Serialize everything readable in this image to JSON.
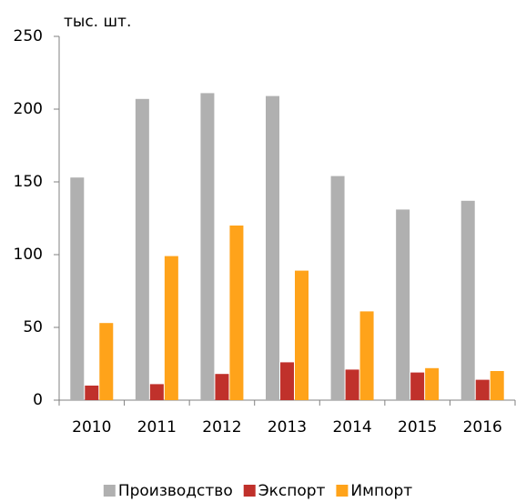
{
  "chart_data": {
    "type": "bar",
    "y_label": "тыс. шт.",
    "categories": [
      "2010",
      "2011",
      "2012",
      "2013",
      "2014",
      "2015",
      "2016"
    ],
    "series": [
      {
        "name": "Производство",
        "color": "#b0b0b0",
        "values": [
          153,
          207,
          211,
          209,
          154,
          131,
          137
        ]
      },
      {
        "name": "Экспорт",
        "color": "#c0312b",
        "values": [
          10,
          11,
          18,
          26,
          21,
          19,
          14
        ]
      },
      {
        "name": "Импорт",
        "color": "#ffa31a",
        "values": [
          53,
          99,
          120,
          89,
          61,
          22,
          20
        ]
      }
    ],
    "ylim": [
      0,
      250
    ],
    "yticks": [
      0,
      50,
      100,
      150,
      200,
      250
    ],
    "grid": false,
    "legend": "bottom"
  }
}
